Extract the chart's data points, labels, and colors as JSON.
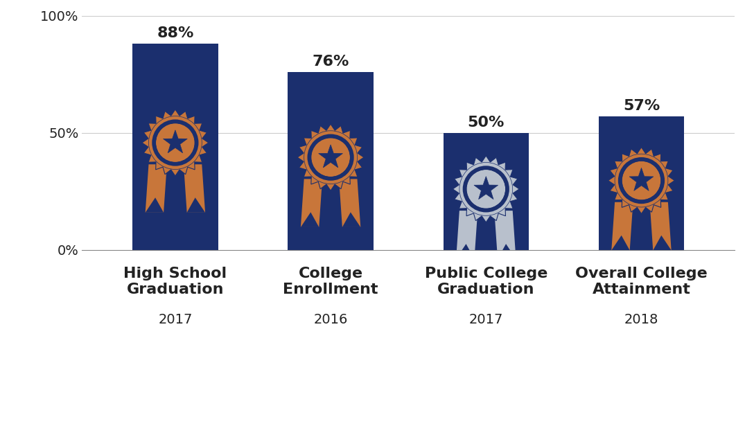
{
  "categories": [
    "High School\nGraduation",
    "College\nEnrollment",
    "Public College\nGraduation",
    "Overall College\nAttainment"
  ],
  "years": [
    "2017",
    "2016",
    "2017",
    "2018"
  ],
  "values": [
    88,
    76,
    50,
    57
  ],
  "bar_color": "#1b2f6e",
  "bar_width": 0.55,
  "value_labels": [
    "88%",
    "76%",
    "50%",
    "57%"
  ],
  "gold_color": "#c8763a",
  "gold_dark": "#1b2f6e",
  "silver_color": "#b8c0cc",
  "silver_dark": "#1b2f6e",
  "ylim": [
    0,
    100
  ],
  "yticks": [
    0,
    50,
    100
  ],
  "ytick_labels": [
    "0%",
    "50%",
    "100%"
  ],
  "background_color": "#ffffff",
  "value_fontsize": 16,
  "label_fontsize": 16,
  "year_fontsize": 14,
  "grid_color": "#cccccc",
  "text_color": "#222222",
  "ribbon_has_gold": [
    true,
    true,
    false,
    true
  ]
}
